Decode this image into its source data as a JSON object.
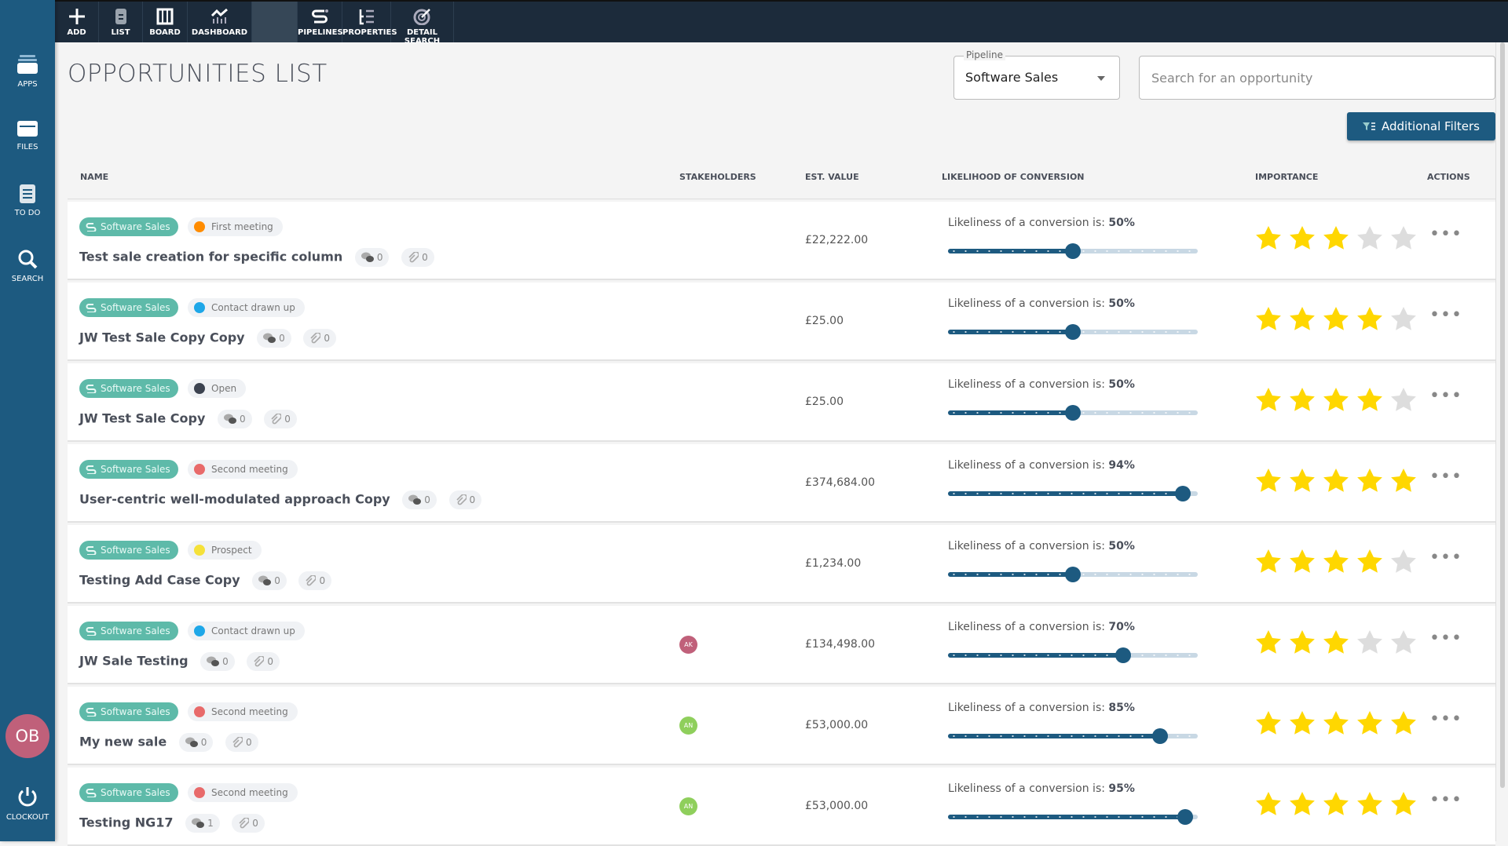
{
  "sidebar": {
    "items": [
      {
        "label": "APPS",
        "icon": "apps-icon"
      },
      {
        "label": "FILES",
        "icon": "files-icon"
      },
      {
        "label": "TO DO",
        "icon": "todo-icon"
      },
      {
        "label": "SEARCH",
        "icon": "search-icon"
      }
    ],
    "user_initials": "OB",
    "clockout": "CLOCKOUT"
  },
  "topbar": {
    "items": [
      {
        "label": "ADD",
        "icon": "plus-icon"
      },
      {
        "label": "LIST",
        "icon": "list-icon"
      },
      {
        "label": "BOARD",
        "icon": "board-icon"
      },
      {
        "label": "DASHBOARD",
        "icon": "dashboard-icon"
      },
      {
        "label": "PIPELINES",
        "icon": "pipelines-icon"
      },
      {
        "label": "PROPERTIES",
        "icon": "properties-icon"
      },
      {
        "label": "DETAIL SEARCH",
        "icon": "detail-search-icon"
      }
    ]
  },
  "page": {
    "title": "OPPORTUNITIES LIST",
    "pipeline_label": "Pipeline",
    "pipeline_value": "Software Sales",
    "search_placeholder": "Search for an opportunity",
    "filters_label": "Additional Filters"
  },
  "columns": {
    "name": "NAME",
    "stakeholders": "STAKEHOLDERS",
    "value": "EST. VALUE",
    "likelihood": "LIKELIHOOD OF CONVERSION",
    "importance": "IMPORTANCE",
    "actions": "ACTIONS"
  },
  "likelihood_prefix": "Likeliness of a conversion is: ",
  "colors": {
    "accent": "#1d5a80",
    "tag": "#5ebaa9",
    "star_on": "#ffd700",
    "star_off": "#dddddd"
  },
  "rows": [
    {
      "pipeline": "Software Sales",
      "stage": "First meeting",
      "stage_color": "#ff8c00",
      "name": "Test sale creation for specific column",
      "comments": "0",
      "attachments": "0",
      "stakeholder": "",
      "stakeholder_color": "",
      "value": "£22,222.00",
      "likelihood": "50%",
      "likelihood_pct": 50,
      "importance": 3
    },
    {
      "pipeline": "Software Sales",
      "stage": "Contact drawn up",
      "stage_color": "#1ea7e8",
      "name": "JW Test Sale Copy Copy",
      "comments": "0",
      "attachments": "0",
      "stakeholder": "",
      "stakeholder_color": "",
      "value": "£25.00",
      "likelihood": "50%",
      "likelihood_pct": 50,
      "importance": 4
    },
    {
      "pipeline": "Software Sales",
      "stage": "Open",
      "stage_color": "#3c4350",
      "name": "JW Test Sale Copy",
      "comments": "0",
      "attachments": "0",
      "stakeholder": "",
      "stakeholder_color": "",
      "value": "£25.00",
      "likelihood": "50%",
      "likelihood_pct": 50,
      "importance": 4
    },
    {
      "pipeline": "Software Sales",
      "stage": "Second meeting",
      "stage_color": "#e86a6a",
      "name": "User-centric well-modulated approach Copy",
      "comments": "0",
      "attachments": "0",
      "stakeholder": "",
      "stakeholder_color": "",
      "value": "£374,684.00",
      "likelihood": "94%",
      "likelihood_pct": 94,
      "importance": 5
    },
    {
      "pipeline": "Software Sales",
      "stage": "Prospect",
      "stage_color": "#f5e13a",
      "name": "Testing Add Case Copy",
      "comments": "0",
      "attachments": "0",
      "stakeholder": "",
      "stakeholder_color": "",
      "value": "£1,234.00",
      "likelihood": "50%",
      "likelihood_pct": 50,
      "importance": 4
    },
    {
      "pipeline": "Software Sales",
      "stage": "Contact drawn up",
      "stage_color": "#1ea7e8",
      "name": "JW Sale Testing",
      "comments": "0",
      "attachments": "0",
      "stakeholder": "AK",
      "stakeholder_color": "#c0607a",
      "value": "£134,498.00",
      "likelihood": "70%",
      "likelihood_pct": 70,
      "importance": 3
    },
    {
      "pipeline": "Software Sales",
      "stage": "Second meeting",
      "stage_color": "#e86a6a",
      "name": "My new sale",
      "comments": "0",
      "attachments": "0",
      "stakeholder": "AN",
      "stakeholder_color": "#8fcf5c",
      "value": "£53,000.00",
      "likelihood": "85%",
      "likelihood_pct": 85,
      "importance": 5
    },
    {
      "pipeline": "Software Sales",
      "stage": "Second meeting",
      "stage_color": "#e86a6a",
      "name": "Testing NG17",
      "comments": "1",
      "attachments": "0",
      "stakeholder": "AN",
      "stakeholder_color": "#8fcf5c",
      "value": "£53,000.00",
      "likelihood": "95%",
      "likelihood_pct": 95,
      "importance": 5
    }
  ]
}
